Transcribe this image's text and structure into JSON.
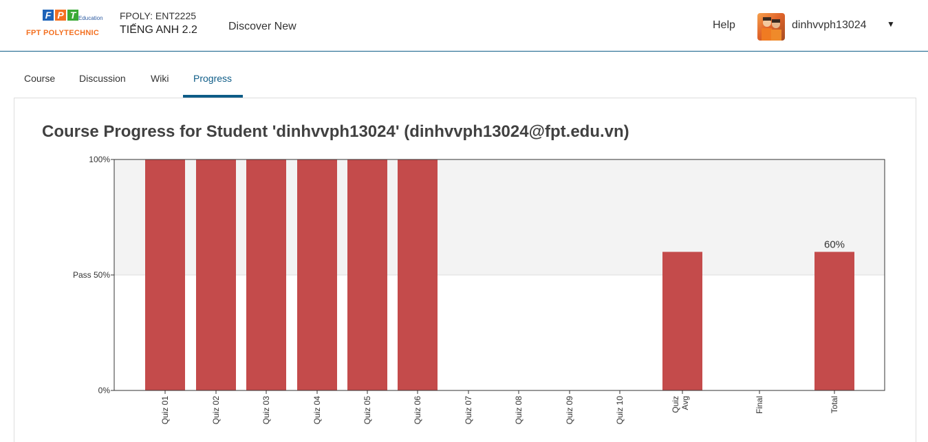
{
  "header": {
    "logo_text": "FPT POLYTECHNIC",
    "logo_letters": [
      "F",
      "P",
      "T"
    ],
    "logo_edu": "Education",
    "course_org": "FPOLY: ENT2225",
    "course_name": "TIẾNG ANH 2.2",
    "discover_label": "Discover New",
    "help_label": "Help",
    "username": "dinhvvph13024",
    "caret_icon": "caret-down-icon"
  },
  "tabs": [
    {
      "label": "Course"
    },
    {
      "label": "Discussion"
    },
    {
      "label": "Wiki"
    },
    {
      "label": "Progress",
      "active": true
    }
  ],
  "main": {
    "title": "Course Progress for Student 'dinhvvph13024' (dinhvvph13024@fpt.edu.vn)"
  },
  "colors": {
    "accent": "#0e5c87",
    "bar": "#c44b4b",
    "pass_zone": "#f3f3f3"
  },
  "chart_data": {
    "type": "bar",
    "categories": [
      "Quiz 01",
      "Quiz 02",
      "Quiz 03",
      "Quiz 04",
      "Quiz 05",
      "Quiz 06",
      "Quiz 07",
      "Quiz 08",
      "Quiz 09",
      "Quiz 10",
      "Quiz Avg",
      "Final",
      "Total"
    ],
    "values": [
      100,
      100,
      100,
      100,
      100,
      100,
      0,
      0,
      0,
      0,
      60,
      0,
      60
    ],
    "ylim": [
      0,
      100
    ],
    "yticks": [
      {
        "value": 0,
        "label": "0%"
      },
      {
        "value": 50,
        "label": "Pass 50%"
      },
      {
        "value": 100,
        "label": "100%"
      }
    ],
    "pass_threshold": 50,
    "data_labels": [
      {
        "category": "Total",
        "label": "60%"
      }
    ]
  }
}
